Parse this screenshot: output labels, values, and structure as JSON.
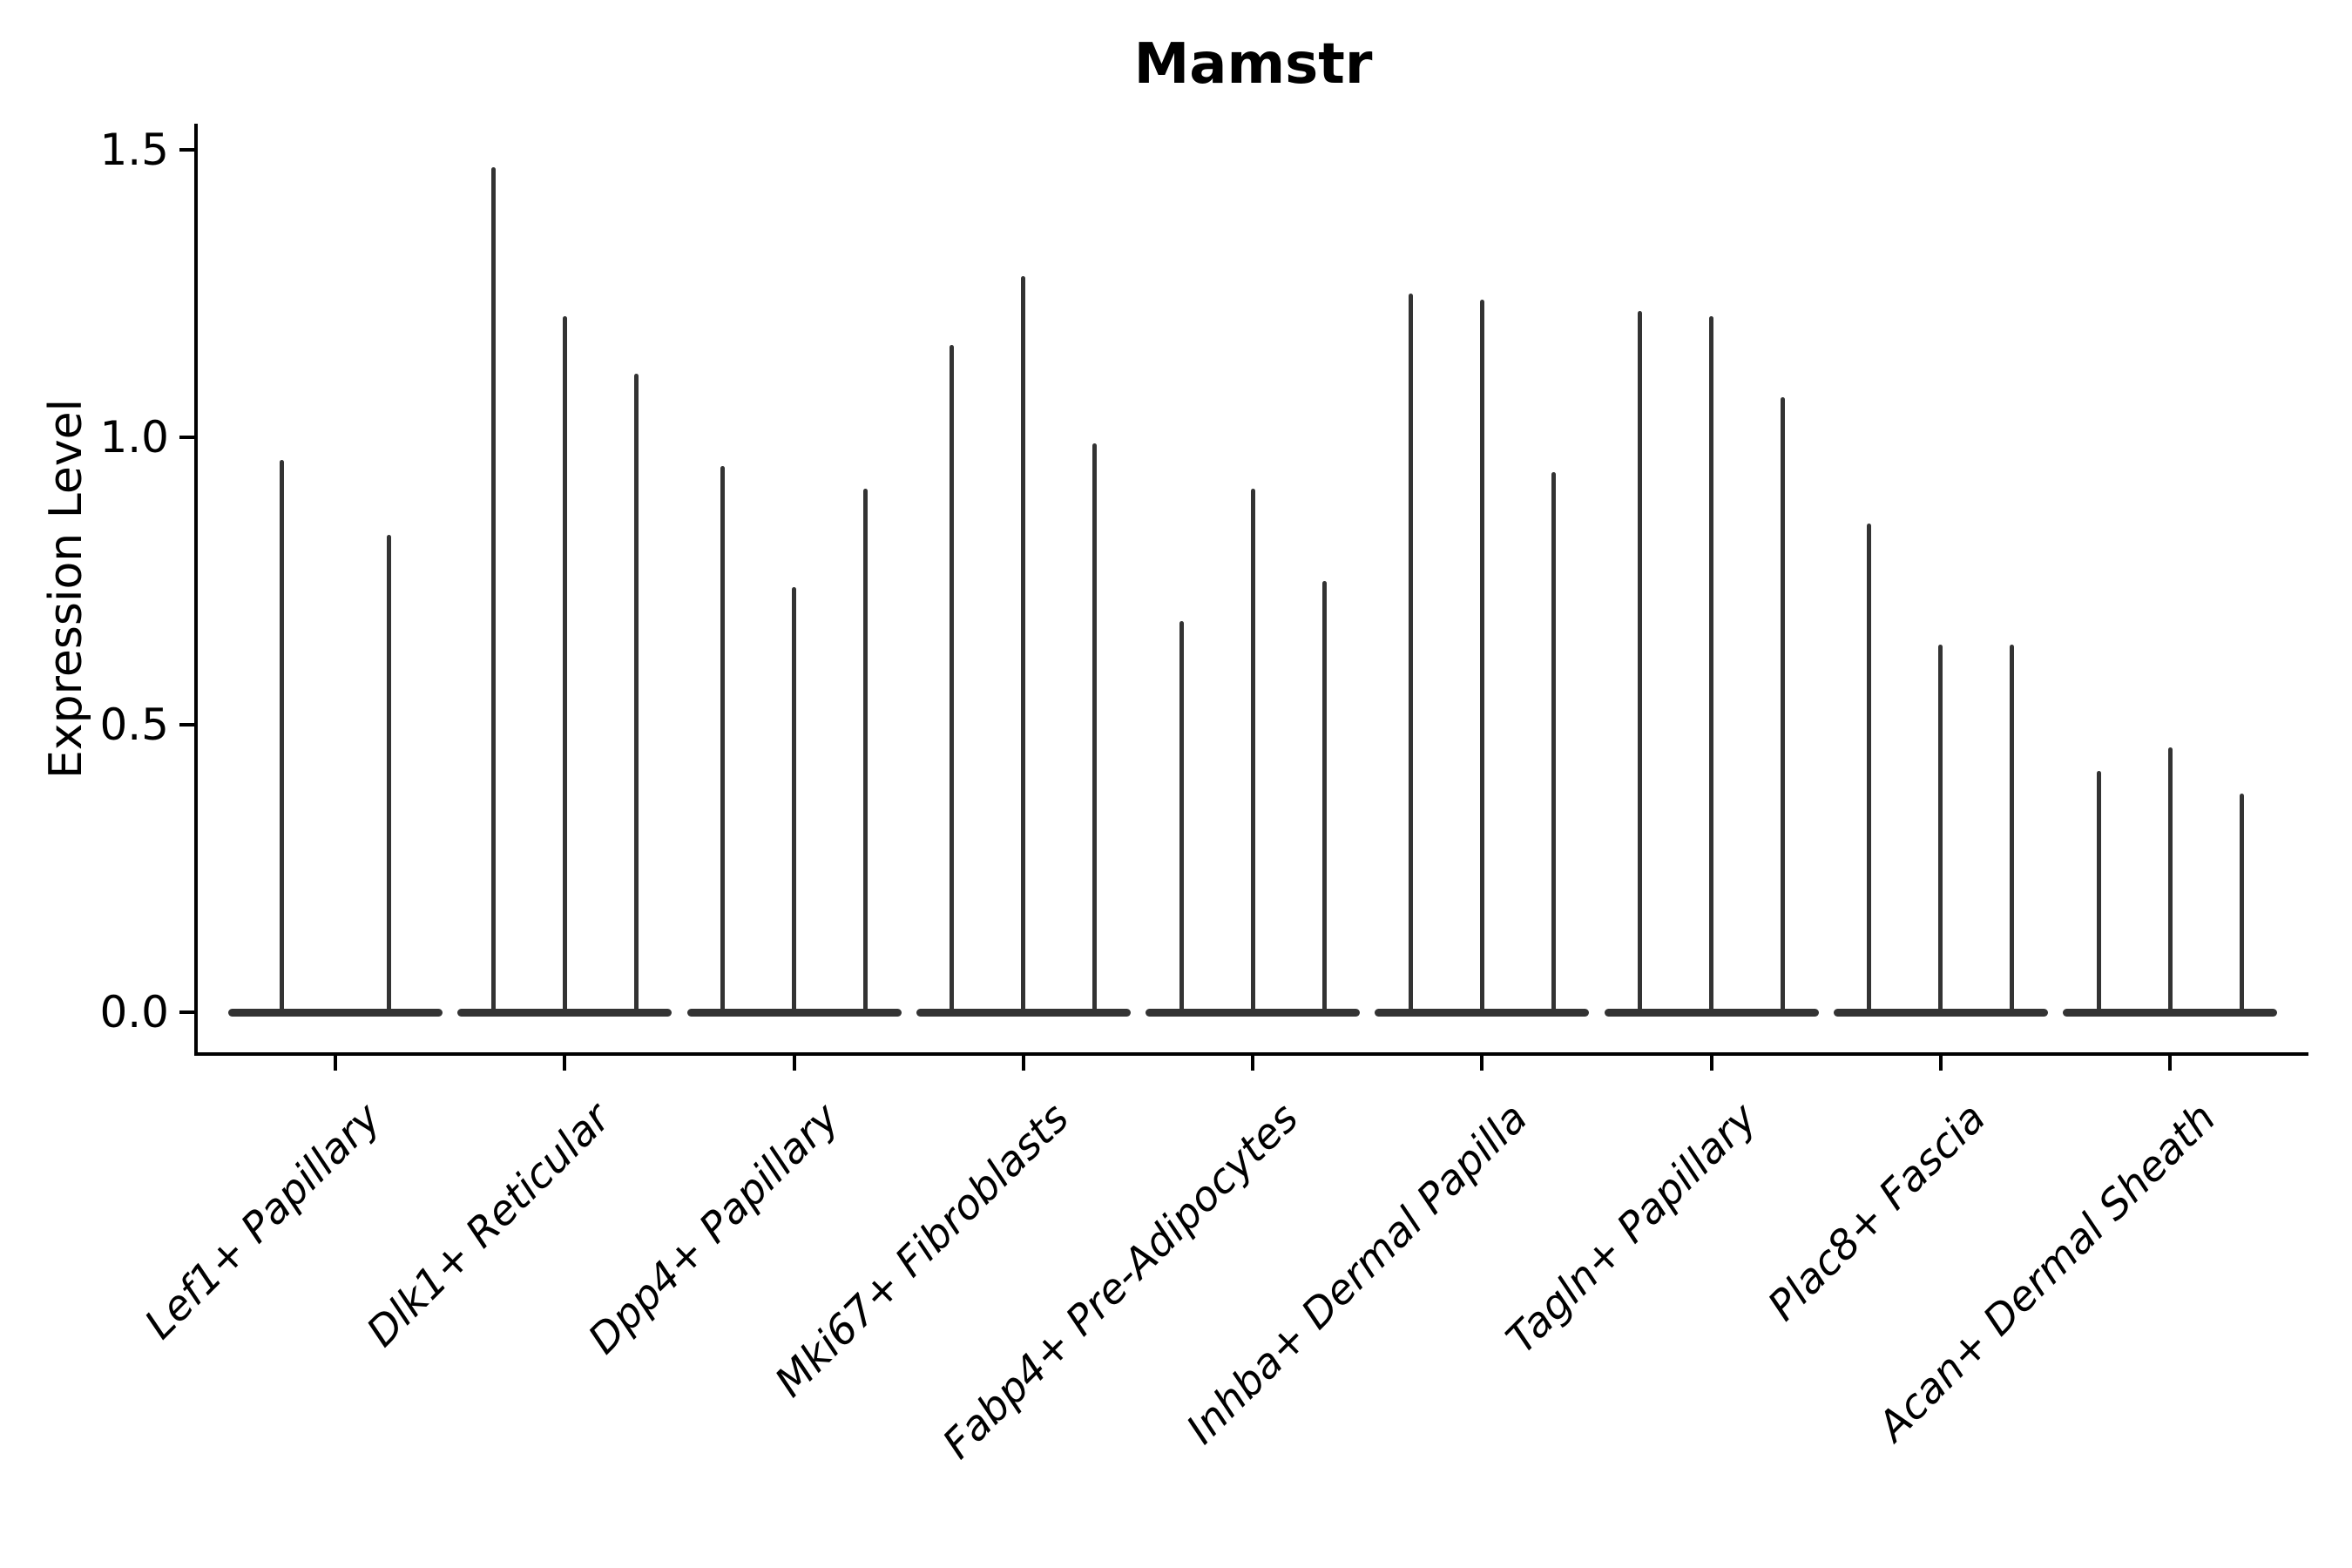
{
  "figure": {
    "background": "#ffffff"
  },
  "chart_data": {
    "type": "violin",
    "title": "Mamstr",
    "ylabel": "Expression Level",
    "xlabel": "",
    "legend": null,
    "grid": false,
    "ylim": [
      -0.075,
      1.55
    ],
    "yticks": [
      {
        "value": 0.0,
        "label": "0.0"
      },
      {
        "value": 0.5,
        "label": "0.5"
      },
      {
        "value": 1.0,
        "label": "1.0"
      },
      {
        "value": 1.5,
        "label": "1.5"
      }
    ],
    "categories": [
      "Lef1+ Papillary",
      "Dlk1+ Reticular",
      "Dpp4+ Papillary",
      "Mki67+ Fibroblasts",
      "Fabp4+ Pre-Adipocytes",
      "Inhba+ Dermal Papilla",
      "Tagln+ Papillary",
      "Plac8+ Fascia",
      "Acan+ Dermal Sheath"
    ],
    "violins": [
      {
        "category": "Lef1+ Papillary",
        "peaks": [
          0.96,
          0.83
        ]
      },
      {
        "category": "Dlk1+ Reticular",
        "peaks": [
          1.47,
          1.21,
          1.11
        ]
      },
      {
        "category": "Dpp4+ Papillary",
        "peaks": [
          0.95,
          0.74,
          0.91
        ]
      },
      {
        "category": "Mki67+ Fibroblasts",
        "peaks": [
          1.16,
          1.28,
          0.99
        ]
      },
      {
        "category": "Fabp4+ Pre-Adipocytes",
        "peaks": [
          0.68,
          0.91,
          0.75
        ]
      },
      {
        "category": "Inhba+ Dermal Papilla",
        "peaks": [
          1.25,
          1.24,
          0.94
        ]
      },
      {
        "category": "Tagln+ Papillary",
        "peaks": [
          1.22,
          1.21,
          1.07
        ]
      },
      {
        "category": "Plac8+ Fascia",
        "peaks": [
          0.85,
          0.64,
          0.64
        ]
      },
      {
        "category": "Acan+ Dermal Sheath",
        "peaks": [
          0.42,
          0.46,
          0.38
        ]
      }
    ],
    "colors": {
      "violin": "#333333",
      "axis": "#000000",
      "text": "#000000"
    }
  }
}
